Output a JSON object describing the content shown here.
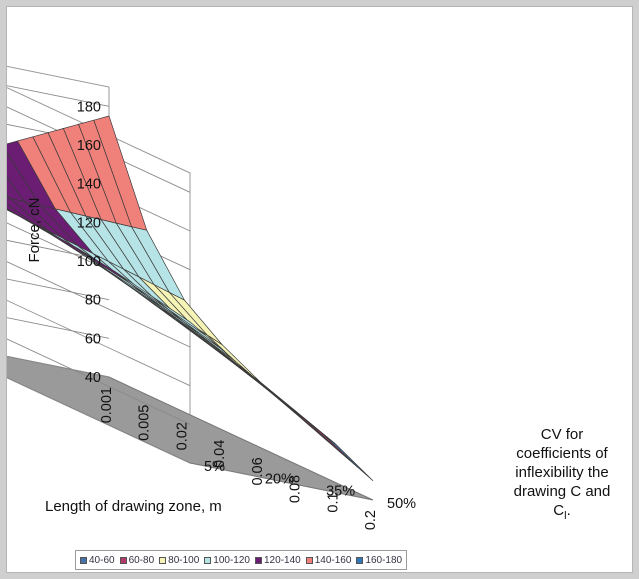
{
  "chart_data": {
    "type": "surface",
    "zlabel": "Force, cN",
    "xlabel": "Length of drawing zone, m",
    "ylabel_lines": [
      "CV for",
      "coefficients of",
      "inflexibility the",
      "drawing C and"
    ],
    "ylabel_last_main": "C",
    "ylabel_last_sub": "l",
    "ylabel_last_tail": ".",
    "z_ticks": [
      40,
      60,
      80,
      100,
      120,
      140,
      160,
      180
    ],
    "zlim": [
      40,
      190
    ],
    "x_tick_labels": [
      "0.001",
      "0.005",
      "0.02",
      "0.04",
      "0.06",
      "0.08",
      "0.1",
      "0.2"
    ],
    "y_tick_labels": [
      "5%",
      "20%",
      "35%",
      "50%"
    ],
    "grid": true,
    "legend_position": "bottom",
    "bands": [
      {
        "label": "40-60",
        "color": "#4573a7"
      },
      {
        "label": "60-80",
        "color": "#b3386b"
      },
      {
        "label": "80-100",
        "color": "#f5f3b5"
      },
      {
        "label": "100-120",
        "color": "#b6e3e6"
      },
      {
        "label": "120-140",
        "color": "#6a1d72"
      },
      {
        "label": "140-160",
        "color": "#f0807a"
      },
      {
        "label": "160-180",
        "color": "#2f78b4"
      }
    ],
    "x_values": [
      0.001,
      0.005,
      0.02,
      0.04,
      0.06,
      0.08,
      0.1,
      0.2
    ],
    "cv_values": [
      "5%",
      "20%",
      "35%",
      "50%"
    ],
    "force_at_cv_5": [
      130,
      128,
      127,
      126,
      124,
      121,
      117,
      113
    ],
    "force_at_cv_50": [
      175,
      125,
      98,
      84,
      74,
      67,
      60,
      50
    ]
  },
  "colors": {
    "wall": "#ffffff",
    "floor": "#9a9a9a",
    "gridline": "#8a8a8a",
    "mesh": "#3a3a3a"
  }
}
